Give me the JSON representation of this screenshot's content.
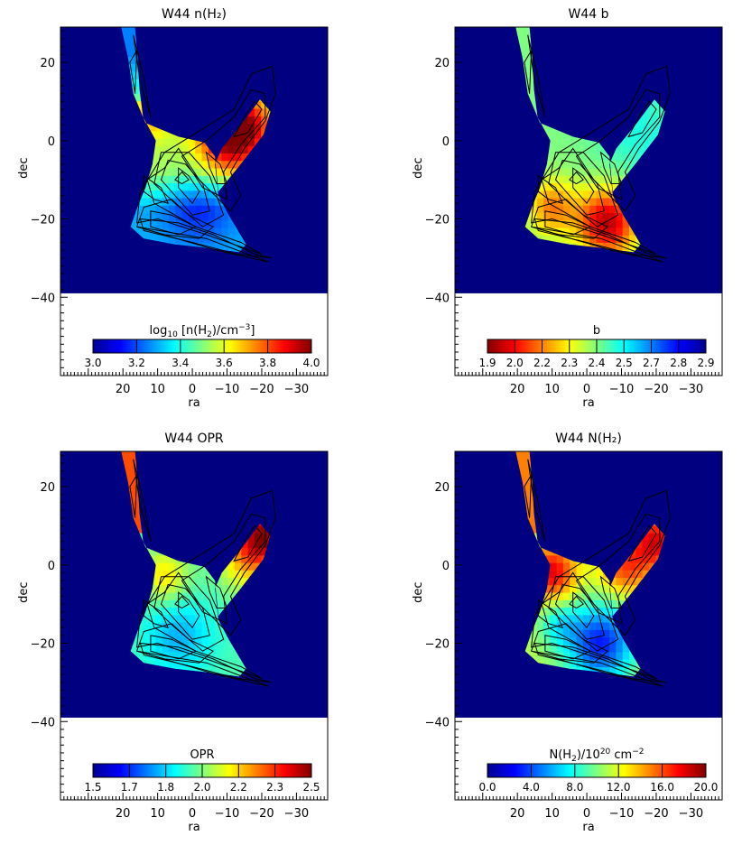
{
  "chart_data": [
    {
      "type": "heatmap",
      "title": "W44 n(H₂)",
      "xlabel": "ra",
      "ylabel": "dec",
      "xlim": [
        38,
        -39
      ],
      "ylim": [
        -60,
        29
      ],
      "x_ticks": [
        20,
        10,
        0,
        -10,
        -20,
        -30
      ],
      "y_ticks": [
        20,
        0,
        -20,
        -40
      ],
      "map_dec_range": [
        -39,
        29
      ],
      "colorbar": {
        "label_parts": [
          "log",
          "10",
          " [n(H",
          "2",
          ")/cm",
          "-3",
          "]"
        ],
        "colormap": "jet",
        "ticks": [
          "3.0",
          "3.2",
          "3.4",
          "3.6",
          "3.8",
          "4.0"
        ],
        "range": [
          2.95,
          4.0
        ]
      }
    },
    {
      "type": "heatmap",
      "title": "W44 b",
      "xlabel": "ra",
      "ylabel": "dec",
      "xlim": [
        38,
        -39
      ],
      "ylim": [
        -60,
        29
      ],
      "x_ticks": [
        20,
        10,
        0,
        -10,
        -20,
        -30
      ],
      "y_ticks": [
        20,
        0,
        -20,
        -40
      ],
      "map_dec_range": [
        -39,
        29
      ],
      "colorbar": {
        "label_parts": [
          "b"
        ],
        "colormap": "jet_reversed",
        "ticks": [
          "1.9",
          "2.0",
          "2.2",
          "2.3",
          "2.4",
          "2.5",
          "2.7",
          "2.8",
          "2.9"
        ],
        "range": [
          1.9,
          2.9
        ]
      }
    },
    {
      "type": "heatmap",
      "title": "W44 OPR",
      "xlabel": "ra",
      "ylabel": "dec",
      "xlim": [
        38,
        -39
      ],
      "ylim": [
        -60,
        29
      ],
      "x_ticks": [
        20,
        10,
        0,
        -10,
        -20,
        -30
      ],
      "y_ticks": [
        20,
        0,
        -20,
        -40
      ],
      "map_dec_range": [
        -39,
        29
      ],
      "colorbar": {
        "label_parts": [
          "OPR"
        ],
        "colormap": "jet",
        "ticks": [
          "1.5",
          "1.7",
          "1.8",
          "2.0",
          "2.2",
          "2.3",
          "2.5"
        ],
        "range": [
          1.5,
          2.5
        ]
      }
    },
    {
      "type": "heatmap",
      "title": "W44 N(H₂)",
      "xlabel": "ra",
      "ylabel": "dec",
      "xlim": [
        38,
        -39
      ],
      "ylim": [
        -60,
        29
      ],
      "x_ticks": [
        20,
        10,
        0,
        -10,
        -20,
        -30
      ],
      "y_ticks": [
        20,
        0,
        -20,
        -40
      ],
      "map_dec_range": [
        -39,
        29
      ],
      "colorbar": {
        "label_parts": [
          "N(H",
          "2",
          ")/10",
          "20",
          " cm",
          "-2"
        ],
        "colormap": "jet",
        "ticks": [
          "0.0",
          "4.0",
          "8.0",
          "12.0",
          "16.0",
          "20.0"
        ],
        "range": [
          0,
          20
        ]
      }
    }
  ],
  "colors": {
    "background": "#000080",
    "contour": "#000000"
  }
}
